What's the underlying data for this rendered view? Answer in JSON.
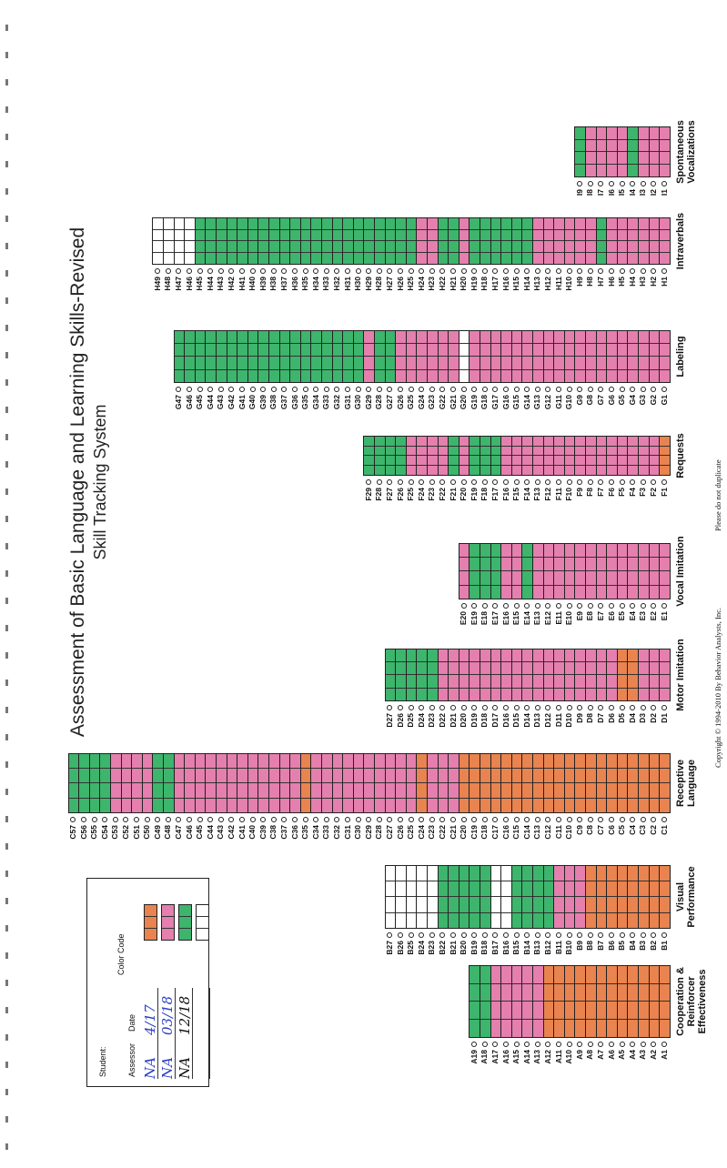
{
  "title": "Assessment of Basic Language and Learning Skills-Revised",
  "subtitle": "Skill Tracking System",
  "student_box": {
    "student_label": "Student:",
    "assessor_label": "Assessor",
    "date_label": "Date",
    "color_code_label": "Color Code",
    "rows": [
      {
        "assessor": "NA",
        "date": "4/17",
        "color": "#e9834f"
      },
      {
        "assessor": "NA",
        "date": "03/18",
        "color": "#e47fae"
      },
      {
        "assessor": "NA",
        "date": "12/18",
        "color": "#3db56c"
      },
      {
        "color": "#ffffff"
      }
    ]
  },
  "domains": [
    {
      "name": "Cooperation & Reinforcer Effectiveness",
      "levels": "0000000000001111122",
      "codes": [
        "A1",
        "A2",
        "A3",
        "A4",
        "A5",
        "A6",
        "A7",
        "A8",
        "A9",
        "A10",
        "A11",
        "A12",
        "A13",
        "A14",
        "A15",
        "A16",
        "A17",
        "A18",
        "A19"
      ]
    },
    {
      "name": "Visual Performance",
      "levels": "000000001112222332222233333",
      "codes": [
        "B1",
        "B2",
        "B3",
        "B4",
        "B5",
        "B6",
        "B7",
        "B8",
        "B9",
        "B10",
        "B11",
        "B12",
        "B13",
        "B14",
        "B15",
        "B16",
        "B17",
        "B18",
        "B19",
        "B20",
        "B21",
        "B22",
        "B23",
        "B24",
        "B25",
        "B26",
        "B27"
      ]
    },
    {
      "name": "Receptive Language",
      "levels": "000000000000000000001110111111111101111111111112211112222",
      "codes": [
        "C1",
        "C2",
        "C3",
        "C4",
        "C5",
        "C6",
        "C7",
        "C8",
        "C9",
        "C10",
        "C11",
        "C12",
        "C13",
        "C14",
        "C15",
        "C16",
        "C17",
        "C18",
        "C19",
        "C20",
        "C21",
        "C22",
        "C23",
        "C24",
        "C25",
        "C26",
        "C27",
        "C28",
        "C29",
        "C30",
        "C31",
        "C32",
        "C33",
        "C34",
        "C35",
        "C36",
        "C37",
        "C38",
        "C39",
        "C40",
        "C41",
        "C42",
        "C43",
        "C44",
        "C45",
        "C46",
        "C47",
        "C48",
        "C49",
        "C50",
        "C51",
        "C52",
        "C53",
        "C54",
        "C55",
        "C56",
        "C57"
      ]
    },
    {
      "name": "Motor Imitation",
      "levels": "111001111111111111111122222",
      "codes": [
        "D1",
        "D2",
        "D3",
        "D4",
        "D5",
        "D6",
        "D7",
        "D8",
        "D9",
        "D10",
        "D11",
        "D12",
        "D13",
        "D14",
        "D15",
        "D16",
        "D17",
        "D18",
        "D19",
        "D20",
        "D21",
        "D22",
        "D23",
        "D24",
        "D25",
        "D26",
        "D27"
      ]
    },
    {
      "name": "Vocal Imitation",
      "levels": "11111111111112112221",
      "codes": [
        "E1",
        "E2",
        "E3",
        "E4",
        "E5",
        "E6",
        "E7",
        "E8",
        "E9",
        "E10",
        "E11",
        "E12",
        "E13",
        "E14",
        "E15",
        "E16",
        "E17",
        "E18",
        "E19",
        "E20"
      ]
    },
    {
      "name": "Requests",
      "levels": "01111111111111112221211112222",
      "codes": [
        "F1",
        "F2",
        "F3",
        "F4",
        "F5",
        "F6",
        "F7",
        "F8",
        "F9",
        "F10",
        "F11",
        "F12",
        "F13",
        "F14",
        "F15",
        "F16",
        "F17",
        "F18",
        "F19",
        "F20",
        "F21",
        "F22",
        "F23",
        "F24",
        "F25",
        "F26",
        "F27",
        "F28",
        "F29"
      ]
    },
    {
      "name": "Labeling",
      "levels": "11111111111111111113111111221222222222222222222",
      "codes": [
        "G1",
        "G2",
        "G3",
        "G4",
        "G5",
        "G6",
        "G7",
        "G8",
        "G9",
        "G10",
        "G11",
        "G12",
        "G13",
        "G14",
        "G15",
        "G16",
        "G17",
        "G18",
        "G19",
        "G20",
        "G21",
        "G22",
        "G23",
        "G24",
        "G25",
        "G26",
        "G27",
        "G28",
        "G29",
        "G30",
        "G31",
        "G32",
        "G33",
        "G34",
        "G35",
        "G36",
        "G37",
        "G38",
        "G39",
        "G40",
        "G41",
        "G42",
        "G43",
        "G44",
        "G45",
        "G46",
        "G47"
      ]
    },
    {
      "name": "Intraverbals",
      "levels": "1111112111111222222122112222222222222222222223333",
      "codes": [
        "H1",
        "H2",
        "H3",
        "H4",
        "H5",
        "H6",
        "H7",
        "H8",
        "H9",
        "H10",
        "H11",
        "H12",
        "H13",
        "H14",
        "H15",
        "H16",
        "H17",
        "H18",
        "H19",
        "H20",
        "H21",
        "H22",
        "H23",
        "H24",
        "H25",
        "H26",
        "H27",
        "H28",
        "H29",
        "H30",
        "H31",
        "H32",
        "H33",
        "H34",
        "H35",
        "H36",
        "H37",
        "H38",
        "H39",
        "H40",
        "H41",
        "H42",
        "H43",
        "H44",
        "H45",
        "H46",
        "H47",
        "H48",
        "H49"
      ]
    },
    {
      "name": "Spontaneous Vocalizations",
      "levels": "111211112",
      "codes": [
        "I1",
        "I2",
        "I3",
        "I4",
        "I5",
        "I6",
        "I7",
        "I8",
        "I9"
      ]
    }
  ],
  "footer": {
    "copyright": "Copyright © 1994-2010 By Behavior Analysts, Inc.",
    "notice": "Please do not duplicate"
  }
}
